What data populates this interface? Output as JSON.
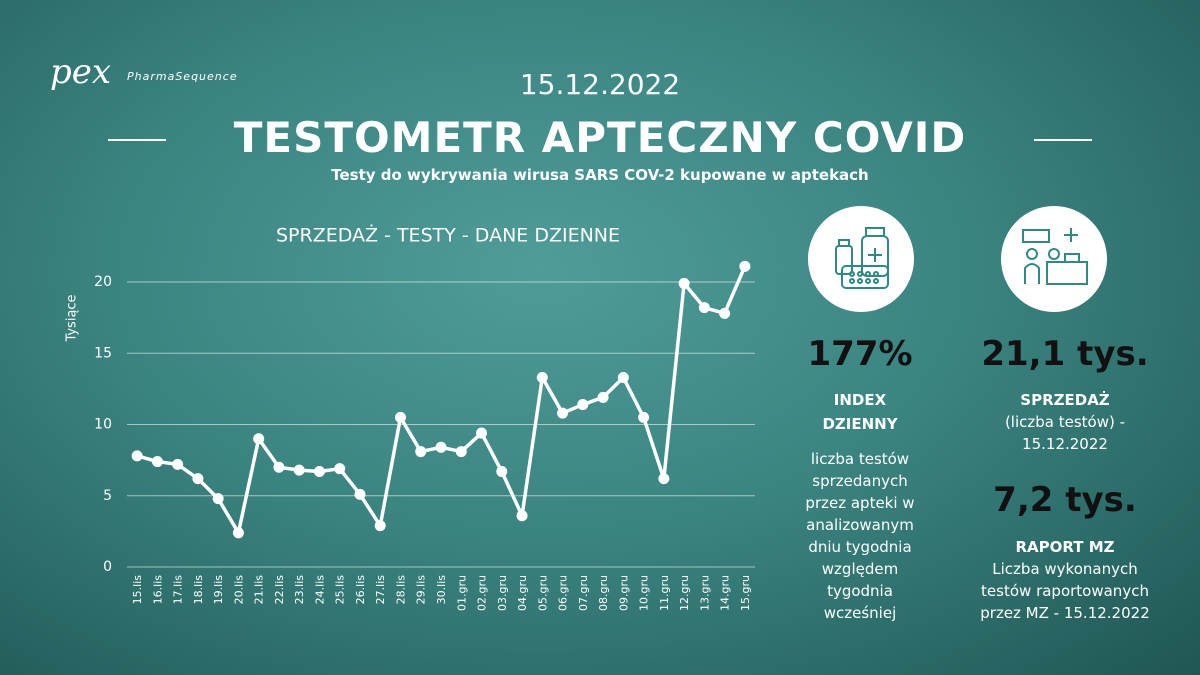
{
  "header": {
    "logo": "pex",
    "brand": "PharmaSequence",
    "date": "15.12.2022",
    "title": "TESTOMETR APTECZNY COVID",
    "subtitle": "Testy do wykrywania wirusa SARS COV-2 kupowane w aptekach"
  },
  "chart_data": {
    "type": "line",
    "title": "SPRZEDAŻ - TESTY - DANE DZIENNE",
    "y_label": "Tysiące",
    "categories": [
      "15.lis",
      "16.lis",
      "17.lis",
      "18.lis",
      "19.lis",
      "20.lis",
      "21.lis",
      "22.lis",
      "23.lis",
      "24.lis",
      "25.lis",
      "26.lis",
      "27.lis",
      "28.lis",
      "29.lis",
      "30.lis",
      "01.gru",
      "02.gru",
      "03.gru",
      "04.gru",
      "05.gru",
      "06.gru",
      "07.gru",
      "08.gru",
      "09.gru",
      "10.gru",
      "11.gru",
      "12.gru",
      "13.gru",
      "14.gru",
      "15.gru"
    ],
    "values": [
      7.8,
      7.4,
      7.2,
      6.2,
      4.8,
      2.4,
      9.0,
      7.0,
      6.8,
      6.7,
      6.9,
      5.1,
      2.9,
      10.5,
      8.1,
      8.4,
      8.1,
      9.4,
      6.7,
      3.6,
      13.3,
      10.8,
      11.4,
      11.9,
      13.3,
      10.5,
      6.2,
      19.9,
      18.2,
      17.8,
      21.1
    ],
    "color": "#ffffff",
    "ylim": [
      0,
      22
    ],
    "yticks": [
      0,
      5,
      10,
      15,
      20
    ],
    "grid": true
  },
  "stats": {
    "index": {
      "value": "177%",
      "label": "INDEX DZIENNY",
      "description": "liczba testów sprzedanych przez apteki w analizowanym dniu tygodnia względem tygodnia wcześniej"
    },
    "sales": {
      "value": "21,1 tys.",
      "label": "SPRZEDAŻ",
      "description": "(liczba testów) - 15.12.2022"
    },
    "report": {
      "value": "7,2 tys.",
      "label": "RAPORT MZ",
      "description": "Liczba wykonanych testów raportowanych przez MZ - 15.12.2022"
    }
  }
}
